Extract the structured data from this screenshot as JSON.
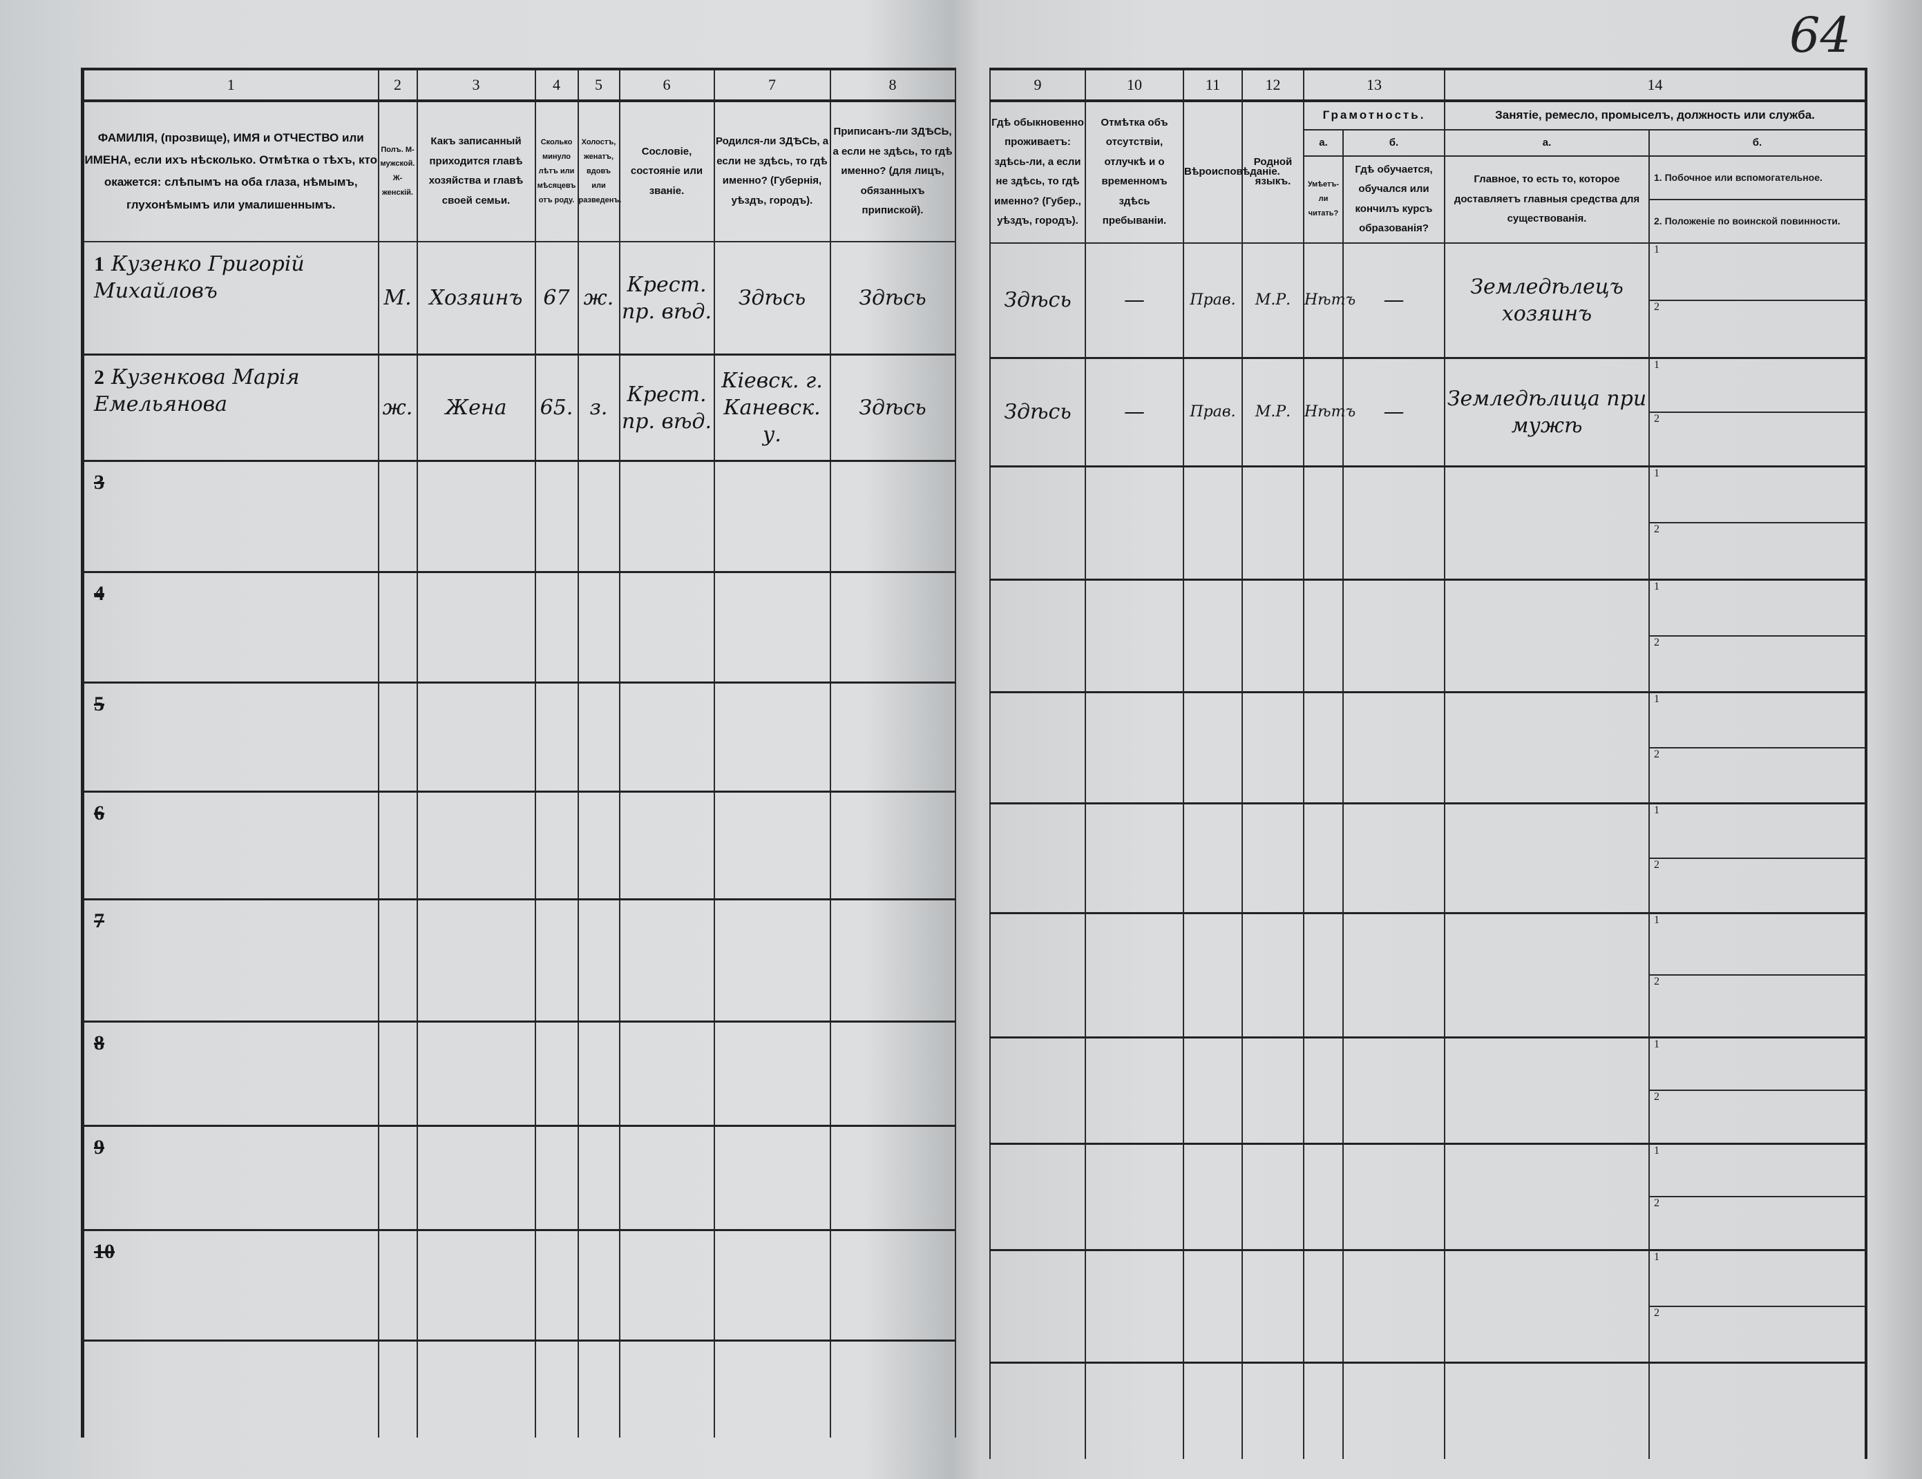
{
  "page_number": "64",
  "left_headers": {
    "numbers": [
      "1",
      "2",
      "3",
      "4",
      "5",
      "6",
      "7",
      "8"
    ],
    "col1": "ФАМИЛІЯ, (прозвище), ИМЯ и ОТЧЕСТВО или ИМЕНА, если ихъ нѣсколько. Отмѣтка о тѣхъ, кто окажется: слѣпымъ на оба глаза, нѣмымъ, глухонѣмымъ или умалишеннымъ.",
    "col2": "Полъ. М-мужской. Ж-женскій.",
    "col3": "Какъ записанный приходится главѣ хозяйства и главѣ своей семьи.",
    "col4": "Сколько минуло лѣтъ или мѣсяцевъ отъ роду.",
    "col5": "Холостъ, женатъ, вдовъ или разведенъ.",
    "col6": "Сословіе, состояніе или званіе.",
    "col7": "Родился-ли ЗДѢСЬ, а если не здѣсь, то гдѣ именно? (Губернія, уѣздъ, городъ).",
    "col8": "Приписанъ-ли ЗДѢСЬ, а если не здѣсь, то гдѣ именно? (для лицъ, обязанныхъ припиской)."
  },
  "right_headers": {
    "numbers": [
      "9",
      "10",
      "11",
      "12",
      "13",
      "14"
    ],
    "col9": "Гдѣ обыкновенно проживаетъ: здѣсь-ли, а если не здѣсь, то гдѣ именно? (Губер., уѣздъ, городъ).",
    "col10": "Отмѣтка объ отсутствіи, отлучкѣ и о временномъ здѣсь пребываніи.",
    "col11": "Вѣроисповѣданіе.",
    "col12": "Родной языкъ.",
    "col13": "Грамотность.",
    "col13a": "а.",
    "col13b": "б.",
    "col13a_text": "Умѣетъ-ли читать?",
    "col13b_text": "Гдѣ обучается, обучался или кончилъ курсъ образованія?",
    "col14": "Занятіе, ремесло, промыселъ, должность или служба.",
    "col14a": "а.",
    "col14b": "б.",
    "col14a_text": "Главное, то есть то, которое доставляетъ главныя средства для существованія.",
    "col14b_text1": "1. Побочное или вспомогательное.",
    "col14b_text2": "2. Положеніе по воинской повинности.",
    "sub1": "1",
    "sub2": "2"
  },
  "rows": [
    {
      "no": "1",
      "name": "Кузенко Григорій Михайловъ",
      "sex": "М.",
      "relation": "Хозяинъ",
      "age": "67",
      "marital": "ж.",
      "estate": "Крест. пр. вѣд.",
      "born": "Здѣсь",
      "registered": "Здѣсь",
      "residence": "Здѣсь",
      "absence": "—",
      "religion": "Прав.",
      "language": "М.Р.",
      "literate": "Нѣтъ",
      "education": "—",
      "occupation": "Земледѣлецъ хозяинъ",
      "side": ""
    },
    {
      "no": "2",
      "name": "Кузенкова Марія Емельянова",
      "sex": "ж.",
      "relation": "Жена",
      "age": "65.",
      "marital": "з.",
      "estate": "Крест. пр. вѣд.",
      "born": "Кіевск. г. Каневск. у.",
      "registered": "Здѣсь",
      "residence": "Здѣсь",
      "absence": "—",
      "religion": "Прав.",
      "language": "М.Р.",
      "literate": "Нѣтъ",
      "education": "—",
      "occupation": "Земледѣлица при мужѣ",
      "side": ""
    },
    {
      "no": "3"
    },
    {
      "no": "4"
    },
    {
      "no": "5"
    },
    {
      "no": "6"
    },
    {
      "no": "7"
    },
    {
      "no": "8"
    },
    {
      "no": "9"
    },
    {
      "no": "10"
    }
  ]
}
